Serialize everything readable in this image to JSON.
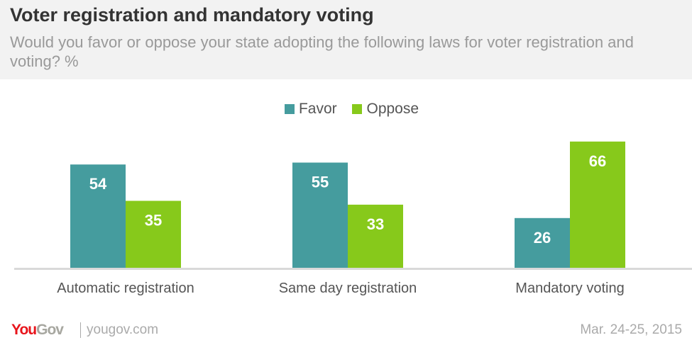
{
  "header": {
    "title": "Voter registration  and mandatory voting",
    "subtitle": "Would you favor or oppose your state adopting the following laws for voter registration and voting? %"
  },
  "footer": {
    "logo": "YouGov",
    "url": "yougov.com",
    "date": "Mar. 24-25, 2015"
  },
  "chart_data": {
    "type": "bar",
    "title": "Voter registration  and mandatory voting",
    "categories": [
      "Automatic registration",
      "Same day registration",
      "Mandatory voting"
    ],
    "series": [
      {
        "name": "Favor",
        "values": [
          54,
          55,
          26
        ],
        "color": "#459c9e"
      },
      {
        "name": "Oppose",
        "values": [
          35,
          33,
          66
        ],
        "color": "#87c91b"
      }
    ],
    "legend": "top",
    "grid": false,
    "ylim": [
      0,
      66
    ]
  }
}
